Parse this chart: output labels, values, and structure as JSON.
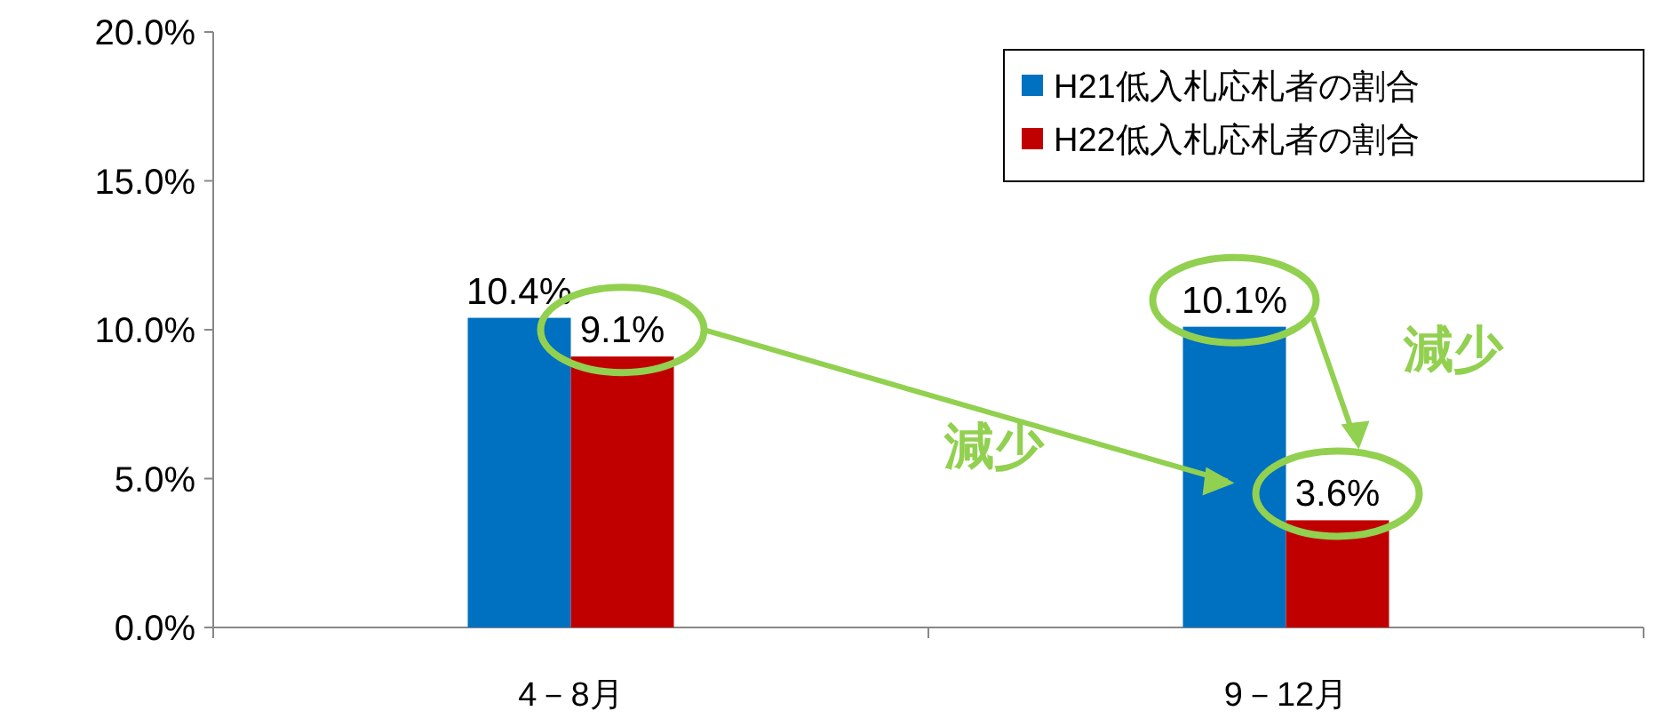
{
  "chart_data": {
    "type": "bar",
    "categories": [
      "4－8月",
      "9－12月"
    ],
    "series": [
      {
        "name": "H21低入札応札者の割合",
        "color": "#0070c0",
        "values": [
          10.4,
          10.1
        ],
        "value_labels": [
          "10.4%",
          "10.1%"
        ]
      },
      {
        "name": "H22低入札応札者の割合",
        "color": "#c00000",
        "values": [
          9.1,
          3.6
        ],
        "value_labels": [
          "9.1%",
          "3.6%"
        ]
      }
    ],
    "ylim": [
      0,
      20
    ],
    "yticks": [
      {
        "value": 0,
        "label": "0.0%"
      },
      {
        "value": 5,
        "label": "5.0%"
      },
      {
        "value": 10,
        "label": "10.0%"
      },
      {
        "value": 15,
        "label": "15.0%"
      },
      {
        "value": 20,
        "label": "20.0%"
      }
    ],
    "legend": "top right",
    "annotations": [
      "減少",
      "減少"
    ]
  }
}
